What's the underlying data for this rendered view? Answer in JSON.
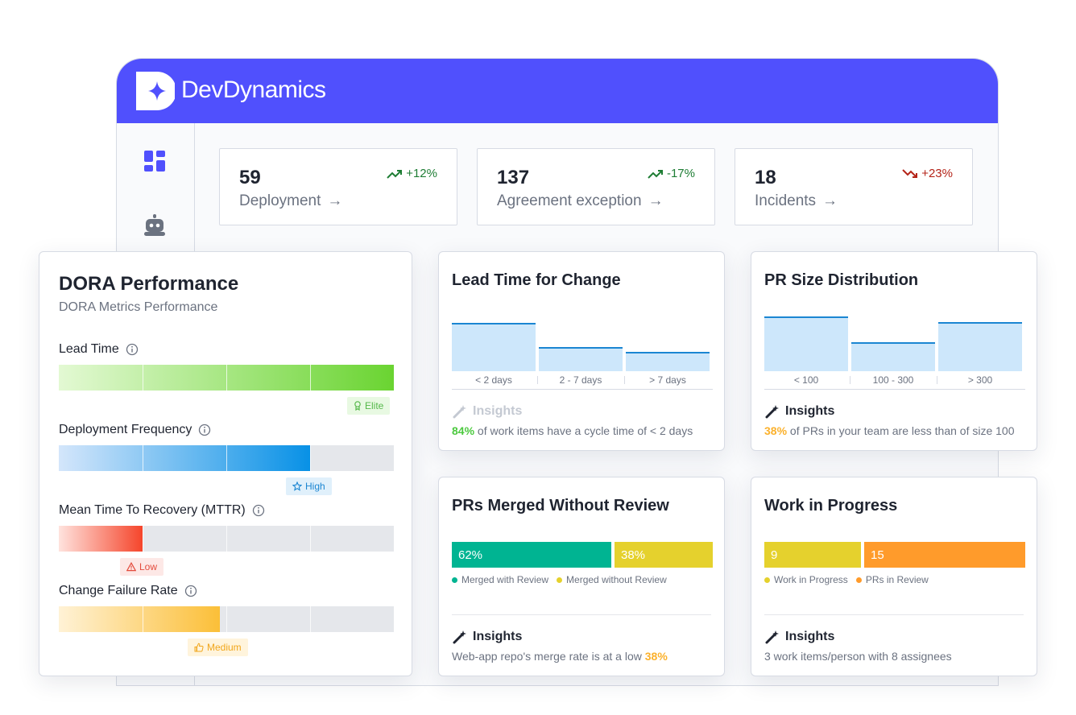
{
  "app": {
    "brand": "DevDynamics"
  },
  "sidebar": {
    "items": [
      {
        "icon": "dashboard-icon"
      },
      {
        "icon": "bot-icon"
      }
    ]
  },
  "stats": [
    {
      "value": "59",
      "label": "Deployment",
      "arrow": "→",
      "trend": "+12%",
      "direction": "up"
    },
    {
      "value": "137",
      "label": "Agreement exception",
      "arrow": "→",
      "trend": "-17%",
      "direction": "up"
    },
    {
      "value": "18",
      "label": "Incidents",
      "arrow": "→",
      "trend": "+23%",
      "direction": "down"
    }
  ],
  "dora": {
    "title": "DORA Performance",
    "subtitle": "DORA Metrics Performance",
    "metrics": [
      {
        "label": "Lead Time",
        "fill_fraction": 1.0,
        "badge": "Elite",
        "color_from": "#e3f9d3",
        "color_to": "#6ad431",
        "badge_bg": "#e8f9e2",
        "badge_color": "#55b84a"
      },
      {
        "label": "Deployment Frequency",
        "fill_fraction": 0.75,
        "badge": "High",
        "color_from": "#d4e6fb",
        "color_to": "#0891e6",
        "badge_bg": "#e0f0fb",
        "badge_color": "#1b86d2"
      },
      {
        "label": "Mean Time To Recovery (MTTR)",
        "fill_fraction": 0.25,
        "badge": "Low",
        "color_from": "#ffe3de",
        "color_to": "#f5452b",
        "badge_bg": "#fde8e6",
        "badge_color": "#e34b3c"
      },
      {
        "label": "Change Failure Rate",
        "fill_fraction": 0.48,
        "badge": "Medium",
        "color_from": "#fff2d6",
        "color_to": "#fbbf38",
        "badge_bg": "#fff4dc",
        "badge_color": "#f1a61b"
      }
    ]
  },
  "lead_time": {
    "title": "Lead Time for Change",
    "insights_title": "Insights",
    "insight_highlight": "84%",
    "insight_rest": " of work items have a cycle time of < 2 days"
  },
  "pr_size": {
    "title": "PR Size Distribution",
    "insights_title": "Insights",
    "insight_highlight": "38%",
    "insight_rest": " of PRs in your team are less than of size 100"
  },
  "chart_data": [
    {
      "type": "bar",
      "title": "Lead Time for Change",
      "categories": [
        "< 2 days",
        "2 - 7 days",
        "> 7 days"
      ],
      "values": [
        84,
        42,
        34
      ],
      "ylim": [
        0,
        100
      ]
    },
    {
      "type": "bar",
      "title": "PR Size Distribution",
      "categories": [
        "< 100",
        "100 - 300",
        "> 300"
      ],
      "values": [
        38,
        20,
        34
      ],
      "ylim": [
        0,
        40
      ]
    }
  ],
  "prs_merged": {
    "title": "PRs Merged Without Review",
    "segments": [
      {
        "label": "62%",
        "value": 62,
        "color": "#00b492",
        "legend": "Merged with Review"
      },
      {
        "label": "38%",
        "value": 38,
        "color": "#e5d12d",
        "legend": "Merged without Review"
      }
    ],
    "insights_title": "Insights",
    "insight_prefix": "Web-app repo's merge rate is at a low ",
    "insight_highlight": "38%"
  },
  "wip": {
    "title": "Work in Progress",
    "segments": [
      {
        "label": "9",
        "value": 9,
        "color": "#e5d12d",
        "legend": "Work in Progress"
      },
      {
        "label": "15",
        "value": 15,
        "color": "#ff9b2b",
        "legend": "PRs in Review"
      }
    ],
    "insights_title": "Insights",
    "insight_text": "3 work items/person with 8 assignees"
  }
}
